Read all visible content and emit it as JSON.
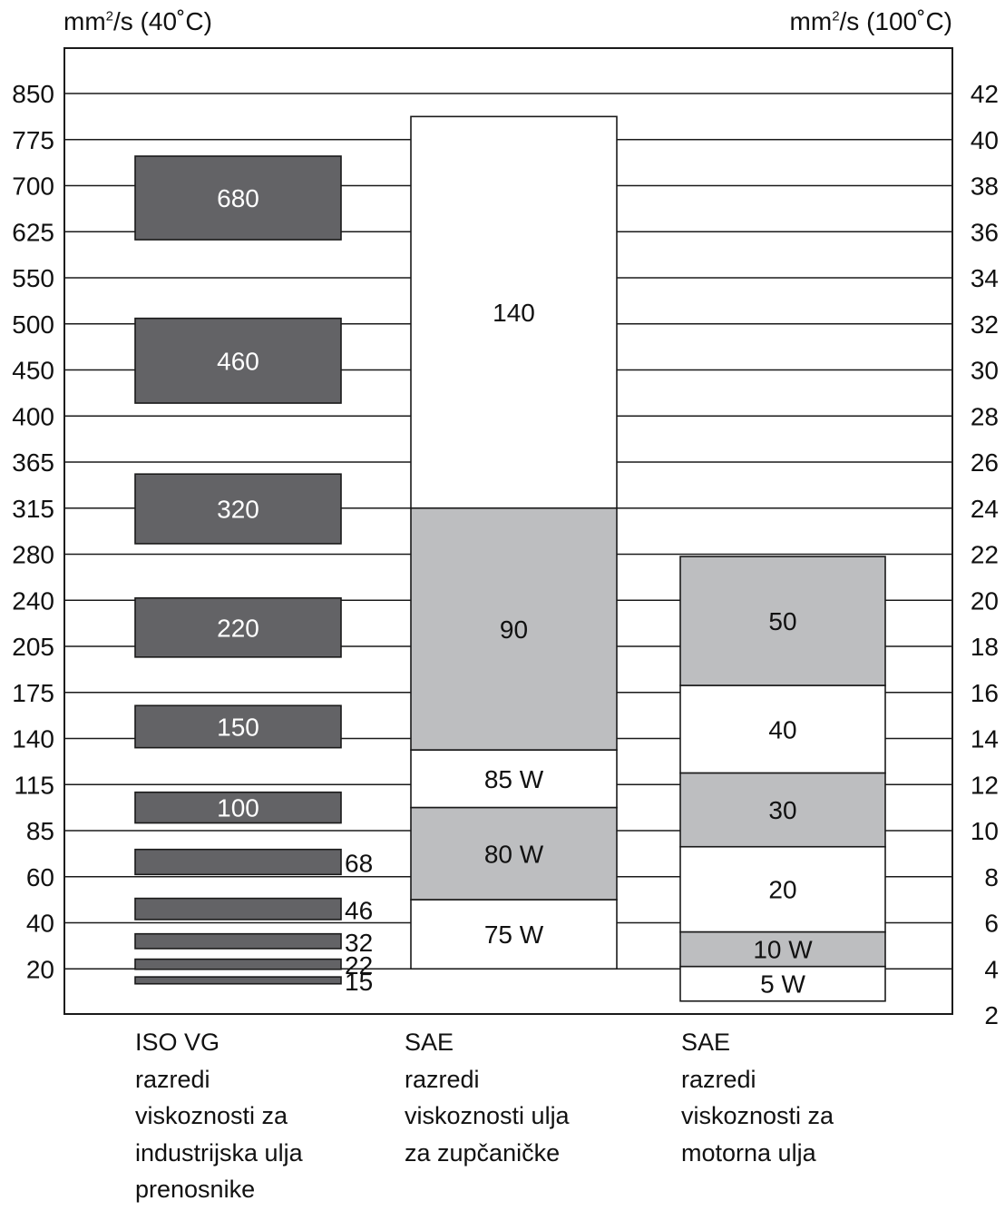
{
  "axes": {
    "left": {
      "unit_base": "mm",
      "unit_sup": "2",
      "unit_tail": "/s (40˚C)",
      "ticks": [
        "850",
        "775",
        "700",
        "625",
        "550",
        "500",
        "450",
        "400",
        "365",
        "315",
        "280",
        "240",
        "205",
        "175",
        "140",
        "115",
        "85",
        "60",
        "40",
        "20"
      ]
    },
    "right": {
      "unit_base": "mm",
      "unit_sup": "2",
      "unit_tail": "/s (100˚C)",
      "ticks": [
        "42",
        "40",
        "38",
        "36",
        "34",
        "32",
        "30",
        "28",
        "26",
        "24",
        "22",
        "20",
        "18",
        "16",
        "14",
        "12",
        "10",
        "8",
        "6",
        "4",
        "2"
      ]
    }
  },
  "chart_data": {
    "type": "bar",
    "grid": true,
    "colors": {
      "dark": "#636366",
      "light": "#bdbec0",
      "white": "#ffffff",
      "line": "#1a1a1a"
    },
    "groups": [
      {
        "caption": [
          "ISO VG",
          "razredi",
          "viskoznosti za",
          "industrijska ulja",
          "prenosnike"
        ],
        "axis": "left",
        "bands": [
          {
            "label": "680",
            "low": 612,
            "high": 748,
            "fill": "dark"
          },
          {
            "label": "460",
            "low": 414,
            "high": 506,
            "fill": "dark"
          },
          {
            "label": "320",
            "low": 288,
            "high": 352,
            "fill": "dark"
          },
          {
            "label": "220",
            "low": 198,
            "high": 242,
            "fill": "dark"
          },
          {
            "label": "150",
            "low": 135,
            "high": 165,
            "fill": "dark"
          },
          {
            "label": "100",
            "low": 90,
            "high": 110,
            "fill": "dark"
          },
          {
            "label": "68",
            "low": 61.2,
            "high": 74.8,
            "fill": "dark"
          },
          {
            "label": "46",
            "low": 41.4,
            "high": 50.6,
            "fill": "dark"
          },
          {
            "label": "32",
            "low": 28.8,
            "high": 35.2,
            "fill": "dark"
          },
          {
            "label": "22",
            "low": 19.8,
            "high": 24.2,
            "fill": "dark"
          },
          {
            "label": "15",
            "low": 13.5,
            "high": 16.5,
            "fill": "dark"
          }
        ]
      },
      {
        "caption": [
          "SAE",
          "razredi",
          "viskoznosti ulja",
          "za zupčaničke"
        ],
        "axis": "right",
        "bands": [
          {
            "label": "140",
            "low": 24.0,
            "high": 41.0,
            "fill": "white"
          },
          {
            "label": "90",
            "low": 13.5,
            "high": 24.0,
            "fill": "light"
          },
          {
            "label": "85 W",
            "low": 11.0,
            "high": 13.5,
            "fill": "white"
          },
          {
            "label": "80 W",
            "low": 7.0,
            "high": 11.0,
            "fill": "light"
          },
          {
            "label": "75 W",
            "low": 4.0,
            "high": 7.0,
            "fill": "white"
          }
        ]
      },
      {
        "caption": [
          "SAE",
          "razredi",
          "viskoznosti za",
          "motorna ulja"
        ],
        "axis": "right",
        "bands": [
          {
            "label": "50",
            "low": 16.3,
            "high": 21.9,
            "fill": "light"
          },
          {
            "label": "40",
            "low": 12.5,
            "high": 16.3,
            "fill": "white"
          },
          {
            "label": "30",
            "low": 9.3,
            "high": 12.5,
            "fill": "light"
          },
          {
            "label": "20",
            "low": 5.6,
            "high": 9.3,
            "fill": "white"
          },
          {
            "label": "10 W",
            "low": 4.1,
            "high": 5.6,
            "fill": "light"
          },
          {
            "label": "5 W",
            "low": 2.6,
            "high": 4.1,
            "fill": "white"
          }
        ]
      }
    ]
  }
}
